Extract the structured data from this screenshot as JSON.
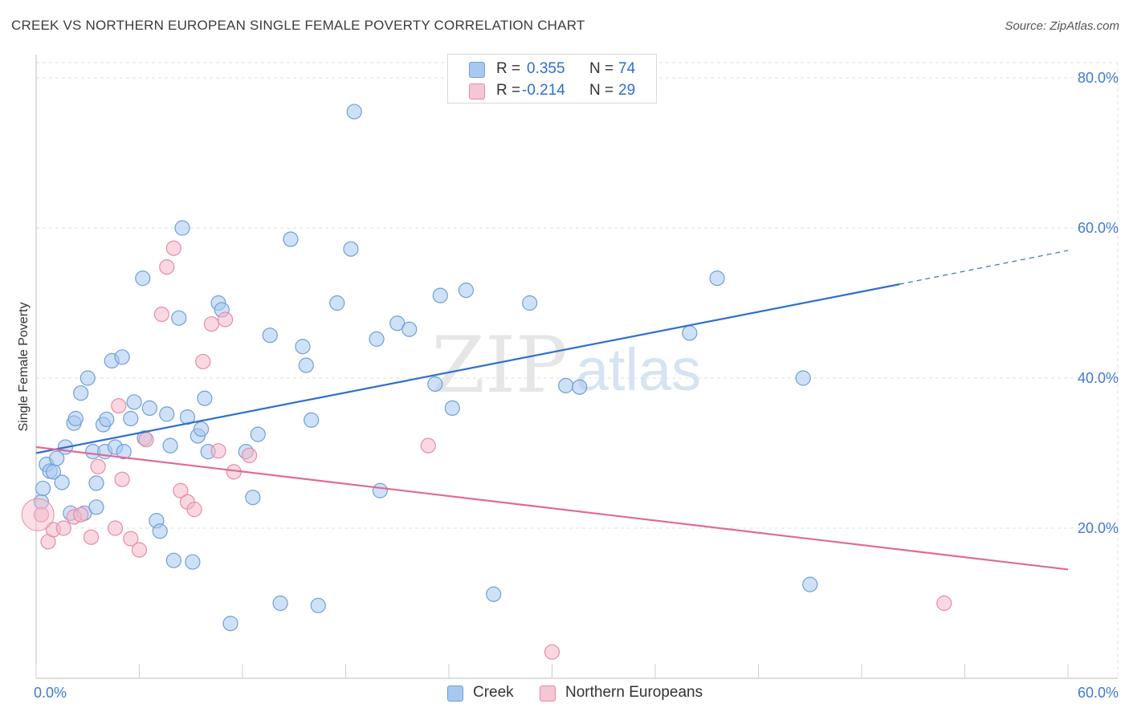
{
  "header": {
    "title": "CREEK VS NORTHERN EUROPEAN SINGLE FEMALE POVERTY CORRELATION CHART",
    "source": "Source: ZipAtlas.com"
  },
  "watermark": {
    "zip": "ZIP",
    "atlas": "atlas"
  },
  "colors": {
    "creek_fill": "#a8c8ef",
    "creek_stroke": "#6f9fd8",
    "creek_line": "#2f70cc",
    "ne_fill": "#f5b8c9",
    "ne_stroke": "#e88ba6",
    "ne_line": "#e06a95",
    "tick_label": "#3f7bd0",
    "grid": "#e2e2e2"
  },
  "stats_legend": [
    {
      "r_label": "R =",
      "r_value": "0.355",
      "n_label": "N =",
      "n_value": "74"
    },
    {
      "r_label": "R =",
      "r_value": "-0.214",
      "n_label": "N =",
      "n_value": "29"
    }
  ],
  "bottom_legend": [
    "Creek",
    "Northern Europeans"
  ],
  "chart_data": {
    "type": "scatter",
    "title": "CREEK VS NORTHERN EUROPEAN SINGLE FEMALE POVERTY CORRELATION CHART",
    "xlabel": "",
    "ylabel": "Single Female Poverty",
    "xlim": [
      0,
      60
    ],
    "ylim": [
      0,
      80
    ],
    "x_tick_labels": [
      "0.0%",
      "60.0%"
    ],
    "y_ticks": [
      20,
      40,
      60,
      80
    ],
    "y_tick_labels": [
      "20.0%",
      "40.0%",
      "60.0%",
      "80.0%"
    ],
    "grid": true,
    "legend_position": "top-center",
    "series": [
      {
        "name": "Creek",
        "r": 0.355,
        "n": 74,
        "trend": {
          "x0": 0,
          "y0": 30.0,
          "x1": 50.2,
          "y1": 52.5,
          "dash_to_x": 60,
          "dash_to_y": 57.0
        },
        "points": [
          [
            0.3,
            23.5
          ],
          [
            0.4,
            25.3
          ],
          [
            0.6,
            28.5
          ],
          [
            0.8,
            27.6
          ],
          [
            1.0,
            27.5
          ],
          [
            1.2,
            29.3
          ],
          [
            1.5,
            26.1
          ],
          [
            1.7,
            30.8
          ],
          [
            2.0,
            22.0
          ],
          [
            2.2,
            34.0
          ],
          [
            2.3,
            34.6
          ],
          [
            2.6,
            38.0
          ],
          [
            2.8,
            22.0
          ],
          [
            3.0,
            40.0
          ],
          [
            3.3,
            30.2
          ],
          [
            3.5,
            26.0
          ],
          [
            3.5,
            22.8
          ],
          [
            3.9,
            33.8
          ],
          [
            4.0,
            30.2
          ],
          [
            4.1,
            34.5
          ],
          [
            4.4,
            42.3
          ],
          [
            4.6,
            30.8
          ],
          [
            5.0,
            42.8
          ],
          [
            5.1,
            30.2
          ],
          [
            5.5,
            34.6
          ],
          [
            5.7,
            36.8
          ],
          [
            6.2,
            53.3
          ],
          [
            6.3,
            32.0
          ],
          [
            6.6,
            36.0
          ],
          [
            7.0,
            21.0
          ],
          [
            7.2,
            19.6
          ],
          [
            7.6,
            35.2
          ],
          [
            7.8,
            31.0
          ],
          [
            8.0,
            15.7
          ],
          [
            8.3,
            48.0
          ],
          [
            8.5,
            60.0
          ],
          [
            8.8,
            34.8
          ],
          [
            9.1,
            15.5
          ],
          [
            9.4,
            32.3
          ],
          [
            9.6,
            33.2
          ],
          [
            9.8,
            37.3
          ],
          [
            10.0,
            30.2
          ],
          [
            10.6,
            50.0
          ],
          [
            10.8,
            49.1
          ],
          [
            11.3,
            7.3
          ],
          [
            12.2,
            30.2
          ],
          [
            12.6,
            24.1
          ],
          [
            12.9,
            32.5
          ],
          [
            13.6,
            45.7
          ],
          [
            14.2,
            10.0
          ],
          [
            14.8,
            58.5
          ],
          [
            15.5,
            44.2
          ],
          [
            15.7,
            41.7
          ],
          [
            16.0,
            34.4
          ],
          [
            16.4,
            9.7
          ],
          [
            17.5,
            50.0
          ],
          [
            18.3,
            57.2
          ],
          [
            18.5,
            75.5
          ],
          [
            19.8,
            45.2
          ],
          [
            20.0,
            25.0
          ],
          [
            21.0,
            47.3
          ],
          [
            21.7,
            46.5
          ],
          [
            23.2,
            39.2
          ],
          [
            23.5,
            51.0
          ],
          [
            24.2,
            36.0
          ],
          [
            25.0,
            51.7
          ],
          [
            26.6,
            11.2
          ],
          [
            28.7,
            50.0
          ],
          [
            30.8,
            39.0
          ],
          [
            31.6,
            38.8
          ],
          [
            38.0,
            46.0
          ],
          [
            39.6,
            53.3
          ],
          [
            44.6,
            40.0
          ],
          [
            45.0,
            12.5
          ]
        ]
      },
      {
        "name": "Northern Europeans",
        "r": -0.214,
        "n": 29,
        "trend": {
          "x0": 0,
          "y0": 30.8,
          "x1": 60.0,
          "y1": 14.5
        },
        "points": [
          [
            0.3,
            21.8
          ],
          [
            0.7,
            18.2
          ],
          [
            1.0,
            19.8
          ],
          [
            1.6,
            20.0
          ],
          [
            2.2,
            21.5
          ],
          [
            2.6,
            21.8
          ],
          [
            3.2,
            18.8
          ],
          [
            3.6,
            28.2
          ],
          [
            4.6,
            20.0
          ],
          [
            4.8,
            36.3
          ],
          [
            5.0,
            26.5
          ],
          [
            5.5,
            18.6
          ],
          [
            6.0,
            17.1
          ],
          [
            6.4,
            31.8
          ],
          [
            7.3,
            48.5
          ],
          [
            7.6,
            54.8
          ],
          [
            8.0,
            57.3
          ],
          [
            8.4,
            25.0
          ],
          [
            8.8,
            23.5
          ],
          [
            9.2,
            22.5
          ],
          [
            9.7,
            42.2
          ],
          [
            10.2,
            47.2
          ],
          [
            10.6,
            30.3
          ],
          [
            11.0,
            47.8
          ],
          [
            11.5,
            27.5
          ],
          [
            12.4,
            29.7
          ],
          [
            22.8,
            31.0
          ],
          [
            30.0,
            3.5
          ],
          [
            52.8,
            10.0
          ]
        ]
      }
    ]
  }
}
